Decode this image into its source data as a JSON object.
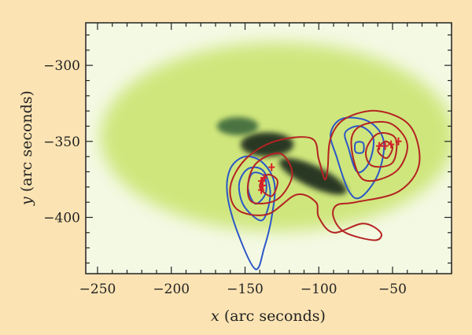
{
  "chart_data": {
    "type": "heatmap",
    "xlabel_var": "x",
    "xlabel_unit": "(arc seconds)",
    "ylabel_var": "y",
    "ylabel_unit": "(arc seconds)",
    "xlim": [
      -258,
      -10
    ],
    "ylim": [
      -437,
      -272
    ],
    "x_ticks": [
      -250,
      -200,
      -150,
      -100,
      -50
    ],
    "x_tick_labels": [
      "−250",
      "−200",
      "−150",
      "−100",
      "−50"
    ],
    "y_ticks": [
      -300,
      -350,
      -400
    ],
    "y_tick_labels": [
      "−300",
      "−350",
      "−400"
    ],
    "minor_tick_step": 10,
    "colors": {
      "background": "#fbe3b3",
      "image_bright": "#f4f9e4",
      "image_mid": "#c3e05a",
      "image_dark": "#1c2a1c",
      "blue_contours": "#2a57c8",
      "red_contours": "#b42323",
      "source_markers": "#d8202a"
    },
    "emission_features": [
      {
        "name": "diffuse-glow",
        "cx": -128,
        "cy": -347,
        "rx": 120,
        "ry": 62,
        "level": 0.35
      },
      {
        "name": "dark-core",
        "cx": -135,
        "cy": -352,
        "rx": 18,
        "ry": 8,
        "level": 1.0
      },
      {
        "name": "dark-ribbon",
        "cx": -104,
        "cy": -373,
        "rx": 25,
        "ry": 7,
        "level": 1.0
      },
      {
        "name": "dark-arc",
        "cx": -155,
        "cy": -340,
        "rx": 14,
        "ry": 6,
        "level": 0.6
      }
    ],
    "series": [
      {
        "color": "blue",
        "contours": [
          [
            [
              -143,
              -434
            ],
            [
              -155,
              -410
            ],
            [
              -162,
              -385
            ],
            [
              -160,
              -368
            ],
            [
              -150,
              -360
            ],
            [
              -138,
              -364
            ],
            [
              -130,
              -378
            ],
            [
              -132,
              -400
            ],
            [
              -137,
              -420
            ]
          ],
          [
            [
              -140,
              -402
            ],
            [
              -151,
              -392
            ],
            [
              -154,
              -378
            ],
            [
              -148,
              -368
            ],
            [
              -138,
              -369
            ],
            [
              -133,
              -382
            ],
            [
              -135,
              -396
            ]
          ],
          [
            [
              -143,
              -391
            ],
            [
              -148,
              -381
            ],
            [
              -145,
              -371
            ],
            [
              -137,
              -373
            ],
            [
              -136,
              -384
            ]
          ],
          [
            [
              -88,
              -360
            ],
            [
              -92,
              -345
            ],
            [
              -84,
              -335
            ],
            [
              -66,
              -337
            ],
            [
              -56,
              -350
            ],
            [
              -60,
              -372
            ],
            [
              -72,
              -387
            ],
            [
              -80,
              -382
            ]
          ],
          [
            [
              -80,
              -354
            ],
            [
              -82,
              -344
            ],
            [
              -72,
              -340
            ],
            [
              -63,
              -348
            ],
            [
              -66,
              -364
            ],
            [
              -74,
              -370
            ]
          ],
          [
            [
              -75,
              -357
            ],
            [
              -75,
              -351
            ],
            [
              -70,
              -351
            ],
            [
              -70,
              -357
            ]
          ]
        ]
      },
      {
        "color": "red",
        "contours": [
          [
            [
              -160,
              -380
            ],
            [
              -150,
              -362
            ],
            [
              -130,
              -350
            ],
            [
              -105,
              -348
            ],
            [
              -100,
              -362
            ],
            [
              -96,
              -375
            ],
            [
              -94,
              -368
            ],
            [
              -92,
              -348
            ],
            [
              -82,
              -335
            ],
            [
              -60,
              -330
            ],
            [
              -38,
              -340
            ],
            [
              -32,
              -365
            ],
            [
              -46,
              -383
            ],
            [
              -75,
              -390
            ],
            [
              -88,
              -392
            ],
            [
              -90,
              -400
            ],
            [
              -82,
              -410
            ],
            [
              -62,
              -415
            ],
            [
              -58,
              -410
            ],
            [
              -70,
              -404
            ],
            [
              -90,
              -410
            ],
            [
              -100,
              -400
            ],
            [
              -102,
              -390
            ],
            [
              -115,
              -385
            ],
            [
              -135,
              -398
            ],
            [
              -155,
              -395
            ]
          ],
          [
            [
              -148,
              -378
            ],
            [
              -142,
              -364
            ],
            [
              -126,
              -358
            ],
            [
              -118,
              -372
            ],
            [
              -128,
              -388
            ],
            [
              -145,
              -390
            ]
          ],
          [
            [
              -140,
              -380
            ],
            [
              -135,
              -372
            ],
            [
              -128,
              -376
            ],
            [
              -132,
              -386
            ]
          ],
          [
            [
              -78,
              -352
            ],
            [
              -72,
              -340
            ],
            [
              -52,
              -338
            ],
            [
              -40,
              -352
            ],
            [
              -48,
              -370
            ],
            [
              -70,
              -375
            ]
          ],
          [
            [
              -68,
              -356
            ],
            [
              -60,
              -345
            ],
            [
              -48,
              -348
            ],
            [
              -50,
              -364
            ],
            [
              -64,
              -366
            ]
          ],
          [
            [
              -60,
              -356
            ],
            [
              -55,
              -350
            ],
            [
              -50,
              -354
            ],
            [
              -54,
              -361
            ]
          ]
        ]
      }
    ],
    "markers": [
      {
        "x": -139,
        "y": -376
      },
      {
        "x": -138,
        "y": -379
      },
      {
        "x": -139,
        "y": -382
      },
      {
        "x": -137,
        "y": -374
      },
      {
        "x": -132,
        "y": -367
      },
      {
        "x": -59,
        "y": -353
      },
      {
        "x": -55,
        "y": -353
      },
      {
        "x": -51,
        "y": -352
      },
      {
        "x": -46,
        "y": -350
      }
    ]
  }
}
